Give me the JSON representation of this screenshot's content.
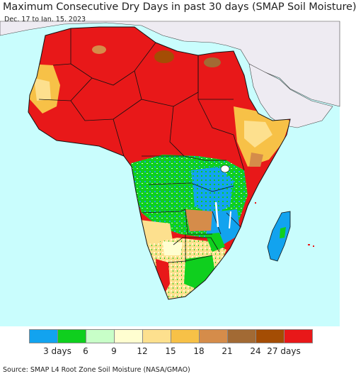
{
  "title": "Maximum Consecutive Dry Days in past 30 days (SMAP Soil Moisture)",
  "date_range": "Dec. 17 to Jan. 15, 2023",
  "source": "Source: SMAP L4 Root Zone Soil Moisture (NASA/GMAO)",
  "legend": {
    "colors": [
      "#12a3ef",
      "#0fcf1e",
      "#c8ffc8",
      "#fffed0",
      "#fde08e",
      "#f7c147",
      "#d58c4a",
      "#a26a34",
      "#a44d04",
      "#e81819"
    ],
    "tick_labels": [
      "3 days",
      "6",
      "9",
      "12",
      "15",
      "18",
      "21",
      "24",
      "27 days"
    ]
  },
  "map": {
    "ocean_color": "#c9fdfd",
    "non_africa_land_color": "#eeebf2",
    "border_color": "#111111"
  }
}
